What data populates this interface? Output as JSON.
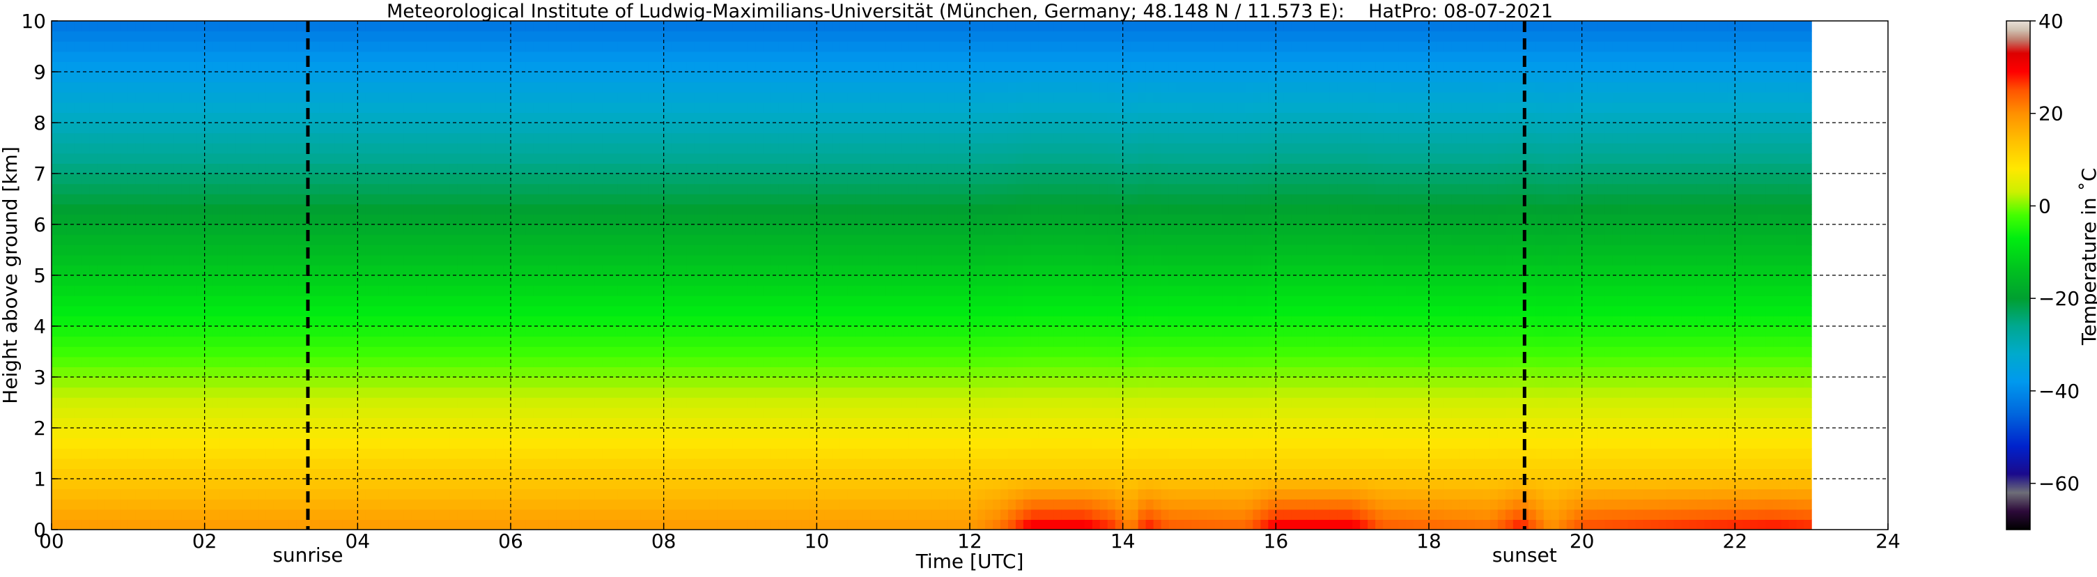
{
  "chart_data": {
    "type": "heatmap",
    "title": "Meteorological Institute of Ludwig-Maximilians-Universität (München, Germany; 48.148 N / 11.573 E):    HatPro: 08-07-2021",
    "xlabel": "Time [UTC]",
    "ylabel": "Height above ground [km]",
    "xlim": [
      0,
      24
    ],
    "ylim": [
      0,
      10
    ],
    "x_ticks": [
      "00",
      "02",
      "04",
      "06",
      "08",
      "10",
      "12",
      "14",
      "16",
      "18",
      "20",
      "22",
      "24"
    ],
    "y_ticks": [
      "0",
      "1",
      "2",
      "3",
      "4",
      "5",
      "6",
      "7",
      "8",
      "9",
      "10"
    ],
    "grid": true,
    "data_end_hour": 23.0,
    "annotations": [
      {
        "label": "sunrise",
        "x": 3.35
      },
      {
        "label": "sunset",
        "x": 19.25
      }
    ],
    "colorbar": {
      "label": "Temperature in ˚C",
      "range": [
        -70,
        40
      ],
      "ticks": [
        "40",
        "20",
        "0",
        "−20",
        "−40",
        "−60"
      ],
      "tick_values": [
        40,
        20,
        0,
        -20,
        -40,
        -60
      ]
    },
    "surface_temperature": {
      "hours": [
        0,
        4,
        8,
        12,
        12.4,
        12.8,
        13.5,
        13.9,
        14.1,
        14.3,
        14.6,
        15.6,
        16.0,
        17.0,
        17.4,
        18.8,
        19.2,
        19.6,
        20.0,
        22.5,
        23.0
      ],
      "values": [
        19,
        19,
        19,
        19,
        23,
        31,
        31,
        27,
        21,
        29,
        25,
        24,
        31,
        31,
        25,
        23,
        29,
        20,
        26,
        29,
        28
      ]
    },
    "lapse_rate_c_per_km": 6.2,
    "warm_layer_top_km": 1.1
  }
}
